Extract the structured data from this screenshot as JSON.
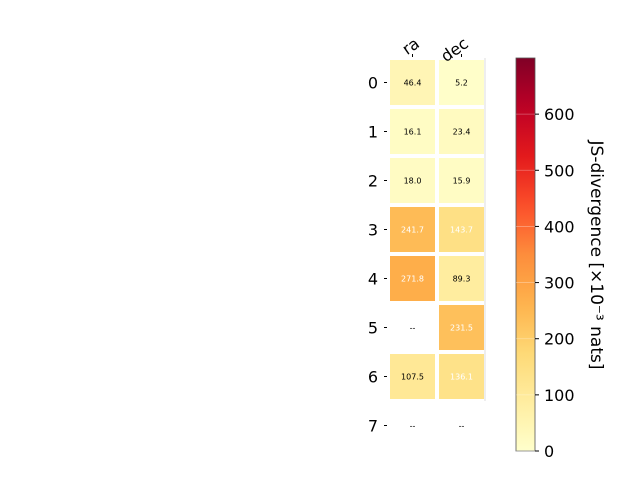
{
  "chart_data": {
    "type": "heatmap",
    "columns": [
      "ra",
      "dec"
    ],
    "rows": [
      "0",
      "1",
      "2",
      "3",
      "4",
      "5",
      "6",
      "7"
    ],
    "values": [
      [
        46.4,
        5.2
      ],
      [
        16.1,
        23.4
      ],
      [
        18.0,
        15.9
      ],
      [
        241.7,
        143.7
      ],
      [
        271.8,
        89.3
      ],
      [
        null,
        231.5
      ],
      [
        107.5,
        136.1
      ],
      [
        null,
        null
      ]
    ],
    "cell_labels": [
      [
        "46.4",
        "5.2"
      ],
      [
        "16.1",
        "23.4"
      ],
      [
        "18.0",
        "15.9"
      ],
      [
        "241.7",
        "143.7"
      ],
      [
        "271.8",
        "89.3"
      ],
      [
        "--",
        "231.5"
      ],
      [
        "107.5",
        "136.1"
      ],
      [
        "--",
        "--"
      ]
    ],
    "colorbar": {
      "label": "JS-divergence [×10⁻³ nats]",
      "ticks": [
        "0",
        "100",
        "200",
        "300",
        "400",
        "500",
        "600"
      ],
      "tick_values": [
        0,
        100,
        200,
        300,
        400,
        500,
        600
      ],
      "vmin": 0,
      "vmax": 700,
      "colormap": "YlOrRd"
    },
    "xlabel": "",
    "ylabel": "",
    "title": ""
  },
  "colors": {
    "cell_border": "#ffffff",
    "text_dark": "#000000",
    "text_light": "#ffffff"
  }
}
